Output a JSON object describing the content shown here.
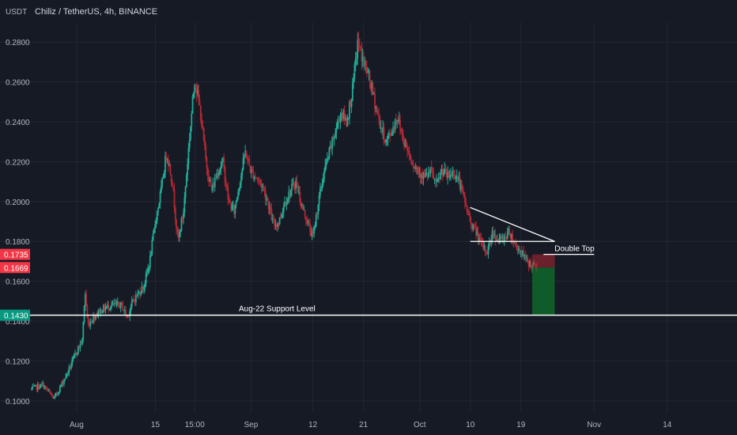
{
  "header": {
    "currency": "USDT",
    "symbol_title": "Chiliz / TetherUS, 4h, BINANCE"
  },
  "colors": {
    "background": "#161a25",
    "grid": "#232735",
    "up": "#22ab94",
    "down": "#b22833",
    "annotation": "#ffffff",
    "badge_red": "#f23645",
    "badge_green": "#089981",
    "stop_zone": "#b22833",
    "target_zone": "#0e6b2a"
  },
  "chart_data": {
    "type": "candlestick",
    "title": "Chiliz / TetherUS, 4h, BINANCE",
    "ylabel": "USDT",
    "ylim": [
      0.094,
      0.29
    ],
    "y_ticks": [
      0.1,
      0.12,
      0.14,
      0.16,
      0.18,
      0.2,
      0.22,
      0.24,
      0.26,
      0.28
    ],
    "y_tick_labels": [
      "0.1000",
      "0.1200",
      "0.1400",
      "0.1600",
      "0.1800",
      "0.2000",
      "0.2200",
      "0.2400",
      "0.2600",
      "0.2800"
    ],
    "x_range": [
      -8,
      116
    ],
    "x_ticks": [
      {
        "x": 0,
        "label": "Aug"
      },
      {
        "x": 14,
        "label": "15"
      },
      {
        "x": 21,
        "label": "15:00"
      },
      {
        "x": 31,
        "label": "Sep"
      },
      {
        "x": 42,
        "label": "12"
      },
      {
        "x": 51,
        "label": "21"
      },
      {
        "x": 61,
        "label": "Oct"
      },
      {
        "x": 70,
        "label": "10"
      },
      {
        "x": 79,
        "label": "19"
      },
      {
        "x": 92,
        "label": "Nov"
      },
      {
        "x": 105,
        "label": "14"
      }
    ],
    "price_path": [
      [
        -8,
        0.106
      ],
      [
        -6,
        0.108
      ],
      [
        -4,
        0.101
      ],
      [
        -2,
        0.112
      ],
      [
        -1,
        0.118
      ],
      [
        0,
        0.125
      ],
      [
        1,
        0.13
      ],
      [
        1.5,
        0.155
      ],
      [
        2,
        0.138
      ],
      [
        3,
        0.142
      ],
      [
        4,
        0.145
      ],
      [
        6,
        0.148
      ],
      [
        8,
        0.148
      ],
      [
        9,
        0.142
      ],
      [
        10,
        0.15
      ],
      [
        12,
        0.158
      ],
      [
        13,
        0.17
      ],
      [
        14,
        0.19
      ],
      [
        15,
        0.205
      ],
      [
        16,
        0.225
      ],
      [
        17,
        0.21
      ],
      [
        18,
        0.18
      ],
      [
        19,
        0.195
      ],
      [
        20,
        0.23
      ],
      [
        21,
        0.262
      ],
      [
        22,
        0.245
      ],
      [
        23,
        0.22
      ],
      [
        24,
        0.205
      ],
      [
        25,
        0.215
      ],
      [
        26,
        0.22
      ],
      [
        27,
        0.2
      ],
      [
        28,
        0.195
      ],
      [
        29,
        0.21
      ],
      [
        30,
        0.225
      ],
      [
        31,
        0.215
      ],
      [
        32,
        0.212
      ],
      [
        33,
        0.208
      ],
      [
        34,
        0.2
      ],
      [
        35,
        0.188
      ],
      [
        36,
        0.19
      ],
      [
        37,
        0.2
      ],
      [
        38,
        0.205
      ],
      [
        39,
        0.21
      ],
      [
        40,
        0.198
      ],
      [
        41,
        0.19
      ],
      [
        42,
        0.182
      ],
      [
        43,
        0.2
      ],
      [
        44,
        0.215
      ],
      [
        45,
        0.225
      ],
      [
        46,
        0.235
      ],
      [
        47,
        0.245
      ],
      [
        48,
        0.24
      ],
      [
        49,
        0.255
      ],
      [
        50,
        0.28
      ],
      [
        51,
        0.27
      ],
      [
        52,
        0.262
      ],
      [
        53,
        0.25
      ],
      [
        54,
        0.238
      ],
      [
        55,
        0.23
      ],
      [
        56,
        0.235
      ],
      [
        57,
        0.243
      ],
      [
        58,
        0.232
      ],
      [
        59,
        0.225
      ],
      [
        60,
        0.218
      ],
      [
        61,
        0.215
      ],
      [
        62,
        0.212
      ],
      [
        63,
        0.215
      ],
      [
        64,
        0.208
      ],
      [
        65,
        0.216
      ],
      [
        66,
        0.212
      ],
      [
        67,
        0.215
      ],
      [
        68,
        0.21
      ],
      [
        69,
        0.2
      ],
      [
        70,
        0.19
      ],
      [
        71,
        0.185
      ],
      [
        72,
        0.178
      ],
      [
        73,
        0.175
      ],
      [
        74,
        0.185
      ],
      [
        75,
        0.18
      ],
      [
        76,
        0.182
      ],
      [
        77,
        0.185
      ],
      [
        78,
        0.178
      ],
      [
        79,
        0.175
      ],
      [
        80,
        0.17
      ],
      [
        81,
        0.168
      ],
      [
        82,
        0.166
      ]
    ],
    "annotations": {
      "support_level": {
        "y": 0.143,
        "label": "Aug-22 Support Level"
      },
      "double_top": {
        "y": 0.1735,
        "x_start": 83,
        "x_end": 92,
        "label": "Double Top"
      },
      "triangle": {
        "upper": [
          [
            70,
            0.197
          ],
          [
            85,
            0.18
          ]
        ],
        "lower": [
          [
            70,
            0.18
          ],
          [
            85,
            0.18
          ]
        ]
      },
      "stop_zone": {
        "x_start": 81,
        "x_end": 85,
        "y_top": 0.1735,
        "y_bottom": 0.1669
      },
      "target_zone": {
        "x_start": 81,
        "x_end": 85,
        "y_top": 0.1669,
        "y_bottom": 0.143
      }
    },
    "price_badges": [
      {
        "value": 0.1735,
        "label": "0.1735",
        "color": "#f23645"
      },
      {
        "value": 0.1669,
        "label": "0.1669",
        "color": "#f23645"
      },
      {
        "value": 0.143,
        "label": "0.1430",
        "color": "#089981"
      }
    ]
  }
}
